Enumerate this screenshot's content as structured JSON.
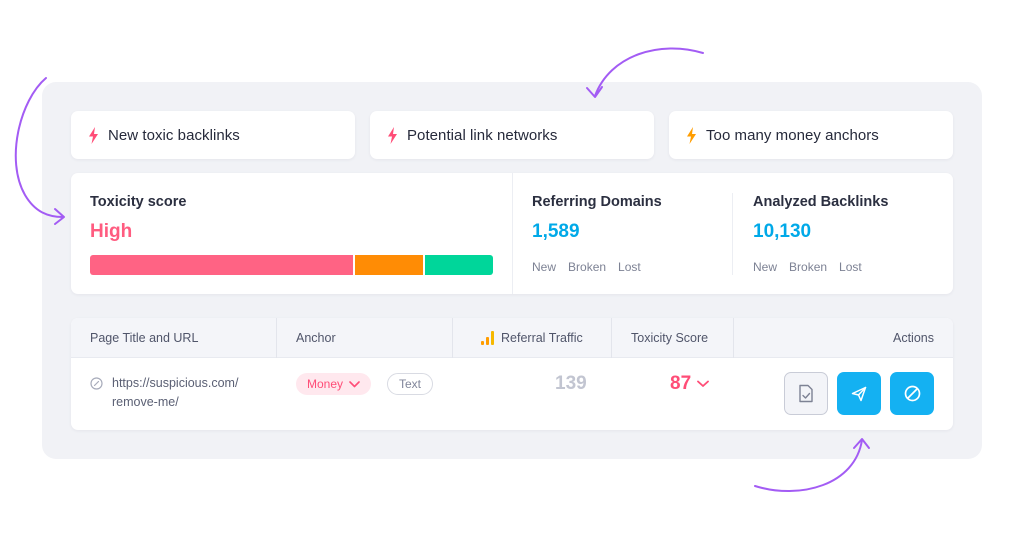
{
  "alerts": [
    {
      "label": "New toxic backlinks",
      "icon": "bolt-icon",
      "color": "#ff4d77"
    },
    {
      "label": "Potential link networks",
      "icon": "bolt-icon",
      "color": "#ff4d77"
    },
    {
      "label": "Too many money anchors",
      "icon": "bolt-icon",
      "color": "#ff9d00"
    }
  ],
  "toxicity": {
    "title": "Toxicity score",
    "value": "High",
    "value_color": "#ff5c80",
    "segments": [
      {
        "level": "high",
        "share": 0.66,
        "color": "#ff6384"
      },
      {
        "level": "medium",
        "share": 0.17,
        "color": "#ff8c05"
      },
      {
        "level": "low",
        "share": 0.17,
        "color": "#00d69a"
      }
    ]
  },
  "referring_domains": {
    "title": "Referring Domains",
    "value": "1,589",
    "sub": [
      "New",
      "Broken",
      "Lost"
    ]
  },
  "analyzed_backlinks": {
    "title": "Analyzed Backlinks",
    "value": "10,130",
    "sub": [
      "New",
      "Broken",
      "Lost"
    ]
  },
  "accent_color": "#00a9e8",
  "table": {
    "columns": {
      "page": "Page Title and URL",
      "anchor": "Anchor",
      "traffic": "Referral Traffic",
      "toxicity": "Toxicity Score",
      "actions": "Actions"
    },
    "row": {
      "url_line1": "https://suspicious.com/",
      "url_line2": "remove-me/",
      "anchor_tag": "Money",
      "anchor_tag_secondary": "Text",
      "traffic": "139",
      "toxicity": "87"
    }
  }
}
